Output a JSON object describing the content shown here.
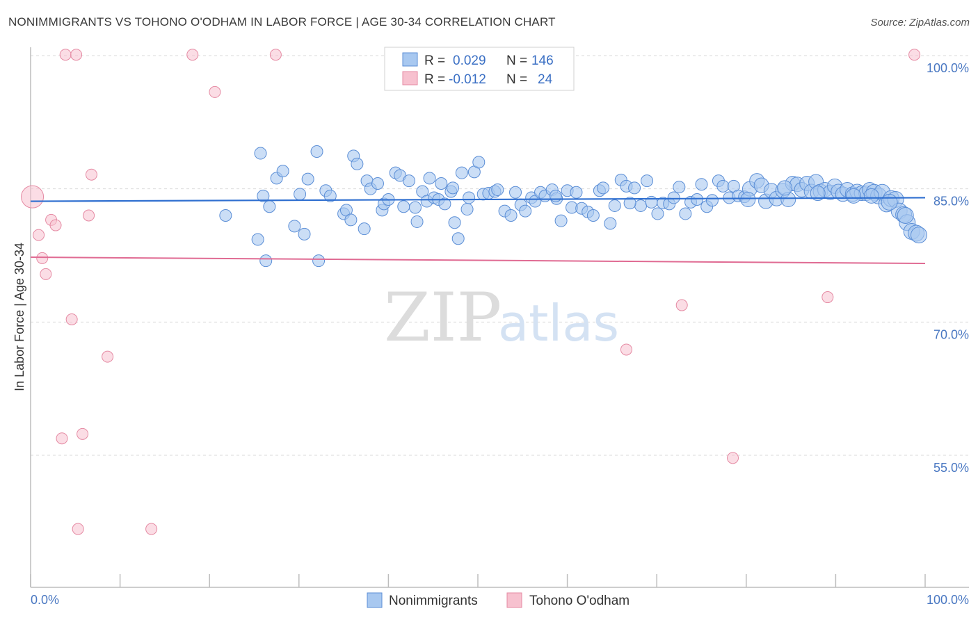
{
  "title": "NONIMMIGRANTS VS TOHONO O'ODHAM IN LABOR FORCE | AGE 30-34 CORRELATION CHART",
  "source": "Source: ZipAtlas.com",
  "watermark": {
    "zip": "ZIP",
    "atlas": "atlas"
  },
  "colors": {
    "blue_fill": "#a8c8f0",
    "blue_stroke": "#5b8ed6",
    "blue_line": "#2f6fd0",
    "pink_fill": "#f7c1cf",
    "pink_stroke": "#e58aa3",
    "pink_line": "#e06b93",
    "grid": "#d9d9d9",
    "tick_text": "#4a78c2"
  },
  "chart_data": {
    "type": "scatter",
    "title": "NONIMMIGRANTS VS TOHONO O'ODHAM IN LABOR FORCE | AGE 30-34 CORRELATION CHART",
    "xlabel": "",
    "ylabel": "In Labor Force | Age 30-34",
    "xlim": [
      0,
      100
    ],
    "ylim": [
      41,
      102
    ],
    "x_tick_labels": [
      "0.0%",
      "100.0%"
    ],
    "y_ticks": [
      {
        "value": 100,
        "label": "100.0%"
      },
      {
        "value": 85,
        "label": "85.0%"
      },
      {
        "value": 70,
        "label": "70.0%"
      },
      {
        "value": 55,
        "label": "55.0%"
      }
    ],
    "legend": {
      "rows": [
        {
          "r_label": "R =",
          "r_value": "0.029",
          "n_label": "N =",
          "n_value": "146"
        },
        {
          "r_label": "R =",
          "r_value": "-0.012",
          "n_label": "N =",
          "n_value": "24"
        }
      ]
    },
    "series": [
      {
        "name": "Nonimmigrants",
        "trend": {
          "x0": 0,
          "y0": 83.6,
          "x1": 100,
          "y1": 84.0
        },
        "points": [
          [
            21.8,
            82.0
          ],
          [
            25.4,
            79.3
          ],
          [
            25.7,
            89.0
          ],
          [
            26.0,
            84.2
          ],
          [
            26.3,
            76.9
          ],
          [
            26.7,
            83.0
          ],
          [
            27.5,
            86.2
          ],
          [
            28.2,
            87.0
          ],
          [
            29.5,
            80.8
          ],
          [
            30.1,
            84.4
          ],
          [
            30.6,
            79.9
          ],
          [
            31.0,
            86.1
          ],
          [
            32.0,
            89.2
          ],
          [
            32.2,
            76.9
          ],
          [
            33.0,
            84.8
          ],
          [
            33.5,
            84.2
          ],
          [
            35.0,
            82.2
          ],
          [
            35.3,
            82.6
          ],
          [
            35.8,
            81.5
          ],
          [
            36.1,
            88.7
          ],
          [
            36.5,
            87.8
          ],
          [
            37.3,
            80.5
          ],
          [
            37.6,
            85.9
          ],
          [
            38.0,
            85.0
          ],
          [
            38.8,
            85.6
          ],
          [
            39.3,
            82.6
          ],
          [
            39.5,
            83.3
          ],
          [
            40.0,
            83.8
          ],
          [
            40.8,
            86.8
          ],
          [
            41.3,
            86.5
          ],
          [
            41.7,
            83.0
          ],
          [
            42.3,
            85.9
          ],
          [
            43.2,
            81.3
          ],
          [
            43.8,
            84.7
          ],
          [
            44.3,
            83.6
          ],
          [
            44.6,
            86.2
          ],
          [
            45.1,
            84.0
          ],
          [
            45.6,
            83.8
          ],
          [
            45.9,
            85.6
          ],
          [
            46.3,
            83.3
          ],
          [
            47.0,
            84.7
          ],
          [
            47.4,
            81.2
          ],
          [
            47.8,
            79.4
          ],
          [
            48.2,
            86.8
          ],
          [
            48.8,
            82.7
          ],
          [
            49.0,
            84.0
          ],
          [
            49.6,
            86.9
          ],
          [
            50.1,
            88.0
          ],
          [
            50.6,
            84.4
          ],
          [
            51.2,
            84.5
          ],
          [
            51.9,
            84.7
          ],
          [
            53.0,
            82.5
          ],
          [
            53.7,
            82.0
          ],
          [
            54.2,
            84.6
          ],
          [
            54.8,
            83.2
          ],
          [
            55.3,
            82.5
          ],
          [
            56.0,
            84.0
          ],
          [
            56.4,
            83.6
          ],
          [
            57.0,
            84.6
          ],
          [
            57.5,
            84.2
          ],
          [
            58.3,
            84.9
          ],
          [
            58.8,
            83.9
          ],
          [
            59.3,
            81.4
          ],
          [
            60.0,
            84.8
          ],
          [
            60.5,
            82.9
          ],
          [
            61.0,
            84.6
          ],
          [
            61.6,
            82.8
          ],
          [
            62.3,
            82.4
          ],
          [
            62.9,
            82.0
          ],
          [
            63.6,
            84.8
          ],
          [
            64.0,
            85.1
          ],
          [
            64.8,
            81.1
          ],
          [
            65.3,
            83.1
          ],
          [
            66.0,
            86.0
          ],
          [
            66.6,
            85.3
          ],
          [
            67.5,
            85.1
          ],
          [
            68.2,
            83.1
          ],
          [
            68.9,
            85.9
          ],
          [
            69.4,
            83.5
          ],
          [
            70.1,
            82.2
          ],
          [
            70.7,
            83.4
          ],
          [
            71.4,
            83.3
          ],
          [
            71.9,
            84.0
          ],
          [
            72.5,
            85.2
          ],
          [
            73.2,
            82.2
          ],
          [
            73.8,
            83.5
          ],
          [
            74.5,
            83.8
          ],
          [
            75.0,
            85.5
          ],
          [
            75.6,
            83.0
          ],
          [
            76.2,
            83.7
          ],
          [
            76.9,
            85.9
          ],
          [
            77.4,
            85.3
          ],
          [
            78.1,
            84.0
          ],
          [
            78.6,
            85.3
          ],
          [
            79.1,
            84.2
          ],
          [
            79.8,
            84.1
          ],
          [
            80.4,
            85.0
          ],
          [
            81.2,
            85.9
          ],
          [
            81.7,
            85.4
          ],
          [
            82.2,
            83.6
          ],
          [
            82.8,
            84.8
          ],
          [
            83.4,
            83.9
          ],
          [
            84.1,
            84.8
          ],
          [
            84.7,
            83.8
          ],
          [
            85.2,
            85.6
          ],
          [
            85.7,
            85.5
          ],
          [
            86.2,
            84.9
          ],
          [
            86.8,
            85.6
          ],
          [
            87.3,
            84.7
          ],
          [
            87.8,
            85.8
          ],
          [
            88.3,
            84.7
          ],
          [
            88.8,
            84.9
          ],
          [
            89.4,
            84.6
          ],
          [
            89.9,
            85.3
          ],
          [
            90.3,
            84.7
          ],
          [
            90.8,
            84.4
          ],
          [
            91.3,
            84.9
          ],
          [
            91.9,
            84.4
          ],
          [
            92.4,
            84.7
          ],
          [
            92.9,
            84.5
          ],
          [
            93.4,
            84.5
          ],
          [
            93.8,
            84.9
          ],
          [
            94.3,
            84.6
          ],
          [
            94.8,
            84.2
          ],
          [
            95.2,
            84.6
          ],
          [
            95.7,
            83.3
          ],
          [
            96.2,
            83.9
          ],
          [
            96.7,
            83.8
          ],
          [
            97.1,
            82.5
          ],
          [
            97.6,
            82.1
          ],
          [
            98.0,
            81.2
          ],
          [
            98.5,
            80.2
          ],
          [
            99.0,
            80.0
          ],
          [
            58.7,
            84.2
          ],
          [
            43.0,
            82.9
          ],
          [
            52.2,
            84.9
          ],
          [
            47.2,
            85.1
          ],
          [
            67.0,
            83.4
          ],
          [
            80.2,
            83.8
          ],
          [
            84.3,
            85.1
          ],
          [
            88.0,
            84.5
          ],
          [
            92.0,
            84.2
          ],
          [
            94.0,
            84.2
          ],
          [
            96.0,
            83.5
          ],
          [
            97.8,
            82.0
          ],
          [
            99.3,
            79.8
          ]
        ]
      },
      {
        "name": "Tohono O'odham",
        "trend": {
          "x0": 0,
          "y0": 77.3,
          "x1": 100,
          "y1": 76.6
        },
        "points": [
          [
            0.2,
            84.1
          ],
          [
            0.9,
            79.8
          ],
          [
            1.3,
            77.2
          ],
          [
            1.7,
            75.4
          ],
          [
            2.3,
            81.5
          ],
          [
            2.8,
            80.9
          ],
          [
            3.5,
            56.9
          ],
          [
            3.9,
            100.1
          ],
          [
            4.6,
            70.3
          ],
          [
            5.1,
            100.1
          ],
          [
            5.3,
            46.7
          ],
          [
            5.8,
            57.4
          ],
          [
            6.5,
            82.0
          ],
          [
            6.8,
            86.6
          ],
          [
            8.6,
            66.1
          ],
          [
            13.5,
            46.7
          ],
          [
            18.1,
            100.1
          ],
          [
            20.6,
            95.9
          ],
          [
            27.4,
            100.1
          ],
          [
            66.6,
            66.9
          ],
          [
            72.8,
            71.9
          ],
          [
            78.5,
            54.7
          ],
          [
            89.1,
            72.8
          ],
          [
            98.8,
            100.1
          ]
        ]
      }
    ]
  }
}
